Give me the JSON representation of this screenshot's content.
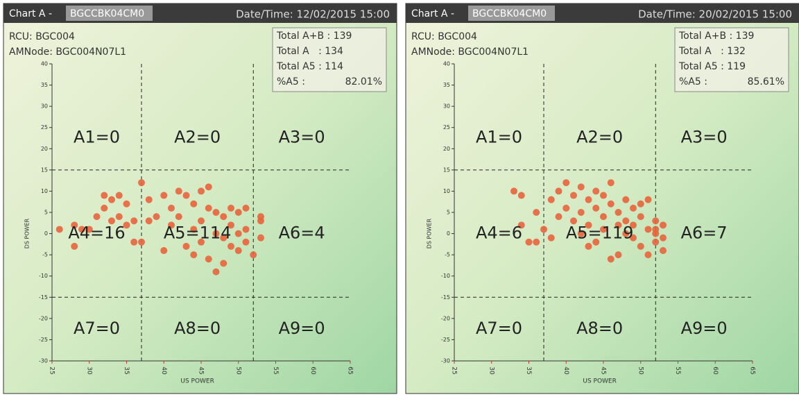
{
  "chart_data": [
    {
      "type": "scatter",
      "chart_label": "Chart A -",
      "device": "BGCCBK04CM0",
      "datetime": "Date/Time: 12/02/2015 15:00",
      "rcu": "RCU: BGC004",
      "amnode": "AMNode: BGC004N07L1",
      "totals": [
        "Total A+B : 139",
        "Total A   : 134",
        "Total A5 : 114",
        "%A5 :"
      ],
      "percent_a5": "82.01%",
      "zones": [
        "A1=0",
        "A2=0",
        "A3=0",
        "A4=16",
        "A5=114",
        "A6=4",
        "A7=0",
        "A8=0",
        "A9=0"
      ],
      "x_label": "US POWER",
      "y_label": "DS POWER",
      "xlim": [
        25,
        65
      ],
      "ylim": [
        -30,
        40
      ],
      "xticks": [
        25,
        30,
        35,
        40,
        45,
        50,
        55,
        60,
        65
      ],
      "yticks": [
        -30,
        -25,
        -20,
        -15,
        -10,
        -5,
        0,
        5,
        10,
        15,
        20,
        25,
        30,
        35,
        40
      ],
      "xlines": [
        37,
        52
      ],
      "ylines": [
        15,
        -15
      ],
      "color": "#e8643c",
      "x": [
        26,
        28,
        28,
        29,
        30,
        31,
        32,
        32,
        33,
        33,
        34,
        34,
        35,
        35,
        36,
        36,
        37,
        37,
        38,
        38,
        39,
        40,
        40,
        41,
        41,
        42,
        42,
        43,
        43,
        44,
        44,
        44,
        45,
        45,
        45,
        46,
        46,
        46,
        47,
        47,
        47,
        48,
        48,
        48,
        49,
        49,
        49,
        50,
        50,
        50,
        51,
        51,
        51,
        52,
        53,
        53,
        53
      ],
      "y": [
        1,
        -3,
        2,
        1,
        1,
        4,
        9,
        6,
        3,
        8,
        9,
        4,
        7,
        2,
        -2,
        3,
        12,
        -2,
        3,
        8,
        4,
        9,
        -4,
        6,
        2,
        10,
        4,
        9,
        -3,
        7,
        1,
        -5,
        10,
        3,
        -2,
        11,
        6,
        -6,
        5,
        0,
        -9,
        4,
        -1,
        -7,
        6,
        2,
        -3,
        5,
        0,
        -4,
        6,
        1,
        -2,
        -5,
        3,
        -1,
        4
      ]
    },
    {
      "type": "scatter",
      "chart_label": "Chart A -",
      "device": "BGCCBK04CM0",
      "datetime": "Date/Time: 20/02/2015 15:00",
      "rcu": "RCU: BGC004",
      "amnode": "AMNode: BGC004N07L1",
      "totals": [
        "Total A+B : 139",
        "Total A   : 132",
        "Total A5 : 119",
        "%A5 :"
      ],
      "percent_a5": "85.61%",
      "zones": [
        "A1=0",
        "A2=0",
        "A3=0",
        "A4=6",
        "A5=119",
        "A6=7",
        "A7=0",
        "A8=0",
        "A9=0"
      ],
      "x_label": "US POWER",
      "y_label": "DS POWER",
      "xlim": [
        25,
        65
      ],
      "ylim": [
        -30,
        40
      ],
      "xticks": [
        25,
        30,
        35,
        40,
        45,
        50,
        55,
        60,
        65
      ],
      "yticks": [
        -30,
        -25,
        -20,
        -15,
        -10,
        -5,
        0,
        5,
        10,
        15,
        20,
        25,
        30,
        35,
        40
      ],
      "xlines": [
        37,
        52
      ],
      "ylines": [
        15,
        -15
      ],
      "color": "#e8643c",
      "x": [
        33,
        34,
        35,
        36,
        36,
        34,
        37,
        38,
        38,
        39,
        39,
        40,
        40,
        41,
        41,
        42,
        42,
        42,
        43,
        43,
        43,
        44,
        44,
        44,
        45,
        45,
        45,
        46,
        46,
        46,
        47,
        47,
        47,
        48,
        48,
        48,
        49,
        49,
        49,
        50,
        50,
        50,
        51,
        51,
        51,
        52,
        52,
        52,
        53,
        53,
        52,
        53
      ],
      "y": [
        10,
        2,
        -2,
        -2,
        5,
        9,
        1,
        -1,
        8,
        4,
        10,
        6,
        12,
        3,
        9,
        11,
        5,
        0,
        8,
        2,
        -3,
        10,
        6,
        -2,
        9,
        4,
        1,
        12,
        7,
        -6,
        5,
        2,
        -5,
        8,
        3,
        0,
        6,
        2,
        -1,
        7,
        4,
        -3,
        8,
        1,
        -5,
        3,
        0,
        -2,
        2,
        -4,
        1,
        -1
      ]
    }
  ]
}
